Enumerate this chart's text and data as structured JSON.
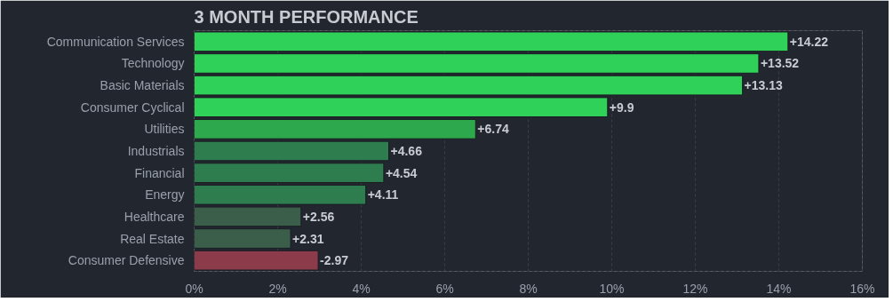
{
  "chart_data": {
    "type": "bar",
    "orientation": "horizontal",
    "title": "3 MONTH PERFORMANCE",
    "categories": [
      "Communication Services",
      "Technology",
      "Basic Materials",
      "Consumer Cyclical",
      "Utilities",
      "Industrials",
      "Financial",
      "Energy",
      "Healthcare",
      "Real Estate",
      "Consumer Defensive"
    ],
    "values": [
      14.22,
      13.52,
      13.13,
      9.9,
      6.74,
      4.66,
      4.54,
      4.11,
      2.56,
      2.31,
      -2.97
    ],
    "base": [
      0,
      0,
      0,
      0,
      0,
      0,
      0,
      0,
      0,
      0,
      2.97
    ],
    "value_labels": [
      "+14.22",
      "+13.52",
      "+13.13",
      "+9.9",
      "+6.74",
      "+4.66",
      "+4.54",
      "+4.11",
      "+2.56",
      "+2.31",
      "-2.97"
    ],
    "colors": [
      "#30d158",
      "#30d158",
      "#30d158",
      "#30d158",
      "#2ea84c",
      "#2e7d4f",
      "#2e7d4f",
      "#2e7d4f",
      "#3b5e4b",
      "#3b5e4b",
      "#8c3b4b"
    ],
    "xlim": [
      0,
      16
    ],
    "xticks": [
      {
        "value": 0,
        "label": "0%"
      },
      {
        "value": 2,
        "label": "2%"
      },
      {
        "value": 4,
        "label": "4%"
      },
      {
        "value": 6,
        "label": "6%"
      },
      {
        "value": 8,
        "label": "8%"
      },
      {
        "value": 10,
        "label": "10%"
      },
      {
        "value": 12,
        "label": "12%"
      },
      {
        "value": 14,
        "label": "14%"
      },
      {
        "value": 16,
        "label": "16%"
      }
    ],
    "grid": "x"
  }
}
